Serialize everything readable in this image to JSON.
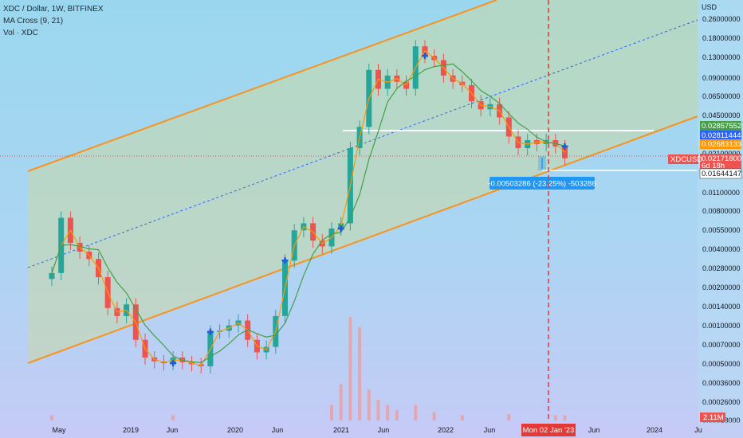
{
  "legend": {
    "symbol": "XDC / Dollar, 1W, BITFINEX",
    "ma": "MA Cross (9, 21)",
    "vol": "Vol · XDC"
  },
  "colors": {
    "up": "#26a69a",
    "down": "#ef5350",
    "ma_fast": "#ff9800",
    "ma_slow": "#43a047",
    "channel": "#f7931e",
    "midline": "#2962ff",
    "hline": "#ffffff",
    "vline": "#e53935",
    "measure": "#2196f3"
  },
  "chart_data": {
    "type": "candlestick",
    "title": "XDC / Dollar, 1W, BITFINEX",
    "y_axis": {
      "unit": "USD",
      "scale": "log",
      "ticks": [
        "0.26000000",
        "0.18000000",
        "0.13000000",
        "0.09000000",
        "0.06500000",
        "0.04500000",
        "0.03100000",
        "0.02100000",
        "0.01100000",
        "0.00800000",
        "0.00550000",
        "0.00400000",
        "0.00280000",
        "0.00200000",
        "0.00140000",
        "0.00100000",
        "0.00070000",
        "0.00050000",
        "0.00036000",
        "0.00026000",
        "0.00018000"
      ],
      "range": [
        0.00016,
        0.32
      ]
    },
    "x_axis": {
      "ticks": [
        "May",
        "2019",
        "Jun",
        "2020",
        "Jun",
        "2021",
        "Jun",
        "2022",
        "Jun",
        "Mon 02 Jan '23",
        "Jun",
        "2024",
        "Ju"
      ]
    },
    "price_tags": [
      {
        "value": "0.02857552",
        "color": "#43a047"
      },
      {
        "value": "0.02811444",
        "color": "#2962ff"
      },
      {
        "value": "0.02683133",
        "color": "#ff9800"
      },
      {
        "value": "0.02171800",
        "color": "#ef5350",
        "label": "XDCUSD",
        "sub": "6d 18h"
      },
      {
        "value": "0.01644147",
        "color": "#ffffff"
      }
    ],
    "measurement": "-0.00503286 (-23.25%) -503286",
    "volume_tag": "2.11M",
    "ohlc": [
      {
        "d": "2018-05",
        "c": 0.0028
      },
      {
        "d": "2018-06",
        "c": 0.0075
      },
      {
        "d": "2018-07",
        "c": 0.0048
      },
      {
        "d": "2018-08",
        "c": 0.0041
      },
      {
        "d": "2018-09",
        "c": 0.0036
      },
      {
        "d": "2018-10",
        "c": 0.0026
      },
      {
        "d": "2018-11",
        "c": 0.0015
      },
      {
        "d": "2018-12",
        "c": 0.0013
      },
      {
        "d": "2019-01",
        "c": 0.0016
      },
      {
        "d": "2019-02",
        "c": 0.00085
      },
      {
        "d": "2019-03",
        "c": 0.00062
      },
      {
        "d": "2019-04",
        "c": 0.00058
      },
      {
        "d": "2019-05",
        "c": 0.00056
      },
      {
        "d": "2019-06",
        "c": 0.00062
      },
      {
        "d": "2019-07",
        "c": 0.00057
      },
      {
        "d": "2019-08",
        "c": 0.00055
      },
      {
        "d": "2019-09",
        "c": 0.00053
      },
      {
        "d": "2019-10",
        "c": 0.00098
      },
      {
        "d": "2019-11",
        "c": 0.001
      },
      {
        "d": "2019-12",
        "c": 0.0011
      },
      {
        "d": "2020-01",
        "c": 0.0012
      },
      {
        "d": "2020-02",
        "c": 0.00085
      },
      {
        "d": "2020-03",
        "c": 0.00068
      },
      {
        "d": "2020-04",
        "c": 0.00075
      },
      {
        "d": "2020-05",
        "c": 0.0013
      },
      {
        "d": "2020-06",
        "c": 0.0035
      },
      {
        "d": "2020-07",
        "c": 0.006
      },
      {
        "d": "2020-08",
        "c": 0.0068
      },
      {
        "d": "2020-09",
        "c": 0.005
      },
      {
        "d": "2020-10",
        "c": 0.0045
      },
      {
        "d": "2020-11",
        "c": 0.0062
      },
      {
        "d": "2020-12",
        "c": 0.0068
      },
      {
        "d": "2021-01",
        "c": 0.026
      },
      {
        "d": "2021-02",
        "c": 0.038
      },
      {
        "d": "2021-03",
        "c": 0.105
      },
      {
        "d": "2021-04",
        "c": 0.075
      },
      {
        "d": "2021-05",
        "c": 0.095
      },
      {
        "d": "2021-06",
        "c": 0.085
      },
      {
        "d": "2021-07",
        "c": 0.075
      },
      {
        "d": "2021-08",
        "c": 0.16
      },
      {
        "d": "2021-09",
        "c": 0.135
      },
      {
        "d": "2021-10",
        "c": 0.125
      },
      {
        "d": "2021-11",
        "c": 0.095
      },
      {
        "d": "2021-12",
        "c": 0.085
      },
      {
        "d": "2022-01",
        "c": 0.08
      },
      {
        "d": "2022-02",
        "c": 0.06
      },
      {
        "d": "2022-03",
        "c": 0.052
      },
      {
        "d": "2022-04",
        "c": 0.057
      },
      {
        "d": "2022-05",
        "c": 0.045
      },
      {
        "d": "2022-06",
        "c": 0.032
      },
      {
        "d": "2022-07",
        "c": 0.026
      },
      {
        "d": "2022-08",
        "c": 0.03
      },
      {
        "d": "2022-09",
        "c": 0.028
      },
      {
        "d": "2022-10",
        "c": 0.03
      },
      {
        "d": "2022-11",
        "c": 0.0268
      },
      {
        "d": "2022-12",
        "c": 0.0217
      }
    ],
    "volume": [
      {
        "d": "2018-05",
        "v": 0.05
      },
      {
        "d": "2019-06",
        "v": 0.05
      },
      {
        "d": "2020-11",
        "v": 0.15
      },
      {
        "d": "2020-12",
        "v": 0.35
      },
      {
        "d": "2021-01",
        "v": 1.0
      },
      {
        "d": "2021-02",
        "v": 0.9
      },
      {
        "d": "2021-03",
        "v": 0.3
      },
      {
        "d": "2021-04",
        "v": 0.2
      },
      {
        "d": "2021-05",
        "v": 0.15
      },
      {
        "d": "2021-06",
        "v": 0.1
      },
      {
        "d": "2021-08",
        "v": 0.15
      },
      {
        "d": "2021-10",
        "v": 0.08
      },
      {
        "d": "2022-01",
        "v": 0.05
      },
      {
        "d": "2022-06",
        "v": 0.06
      },
      {
        "d": "2022-11",
        "v": 0.05
      },
      {
        "d": "2022-12",
        "v": 0.05
      }
    ]
  }
}
